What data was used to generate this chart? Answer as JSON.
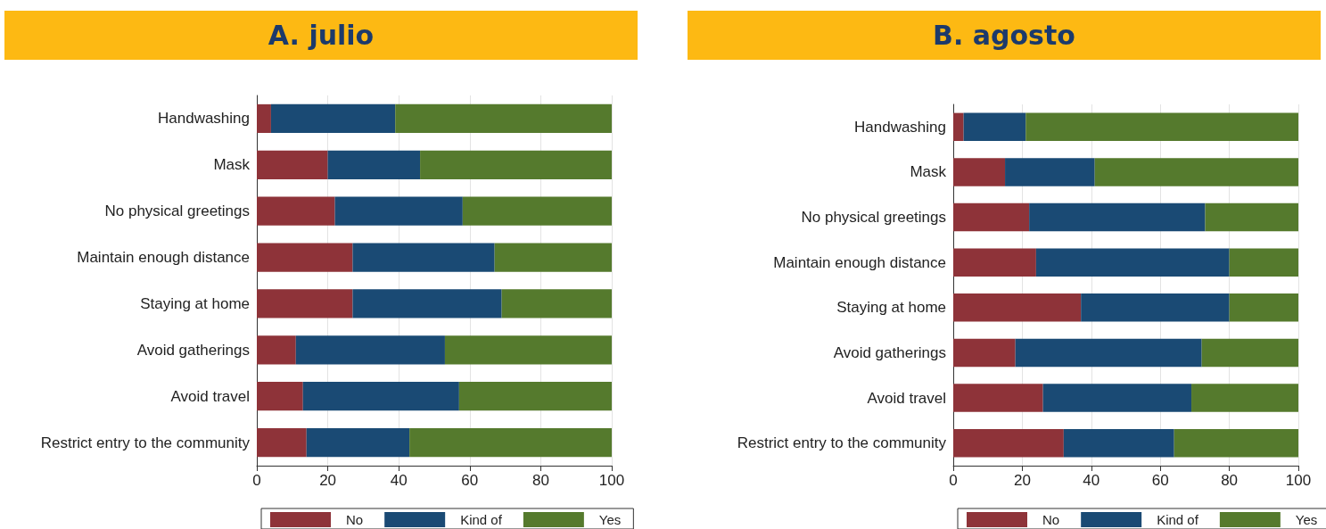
{
  "chart_data": [
    {
      "type": "bar",
      "title": "A. julio",
      "orientation": "horizontal",
      "stacked": true,
      "grid": "x",
      "legend": "bottom",
      "xlim": [
        0,
        100
      ],
      "xticks": [
        0,
        20,
        40,
        60,
        80,
        100
      ],
      "categories": [
        "Handwashing",
        "Mask",
        "No physical greetings",
        "Maintain enough distance",
        "Staying at home",
        "Avoid gatherings",
        "Avoid travel",
        "Restrict entry to the community"
      ],
      "series": [
        {
          "name": "No",
          "color": "#8e3339",
          "values": [
            4,
            20,
            22,
            27,
            27,
            11,
            13,
            14
          ]
        },
        {
          "name": "Kind of",
          "color": "#1a4a74",
          "values": [
            35,
            26,
            36,
            40,
            42,
            42,
            44,
            29
          ]
        },
        {
          "name": "Yes",
          "color": "#557a2d",
          "values": [
            61,
            54,
            42,
            33,
            31,
            47,
            43,
            57
          ]
        }
      ]
    },
    {
      "type": "bar",
      "title": "B. agosto",
      "orientation": "horizontal",
      "stacked": true,
      "grid": "x",
      "legend": "bottom",
      "xlim": [
        0,
        100
      ],
      "xticks": [
        0,
        20,
        40,
        60,
        80,
        100
      ],
      "categories": [
        "Handwashing",
        "Mask",
        "No physical greetings",
        "Maintain enough distance",
        "Staying at home",
        "Avoid gatherings",
        "Avoid travel",
        "Restrict entry to the community"
      ],
      "series": [
        {
          "name": "No",
          "color": "#8e3339",
          "values": [
            3,
            15,
            22,
            24,
            37,
            18,
            26,
            32
          ]
        },
        {
          "name": "Kind of",
          "color": "#1a4a74",
          "values": [
            18,
            26,
            51,
            56,
            43,
            54,
            43,
            32
          ]
        },
        {
          "name": "Yes",
          "color": "#557a2d",
          "values": [
            79,
            59,
            27,
            20,
            20,
            28,
            31,
            36
          ]
        }
      ]
    }
  ]
}
